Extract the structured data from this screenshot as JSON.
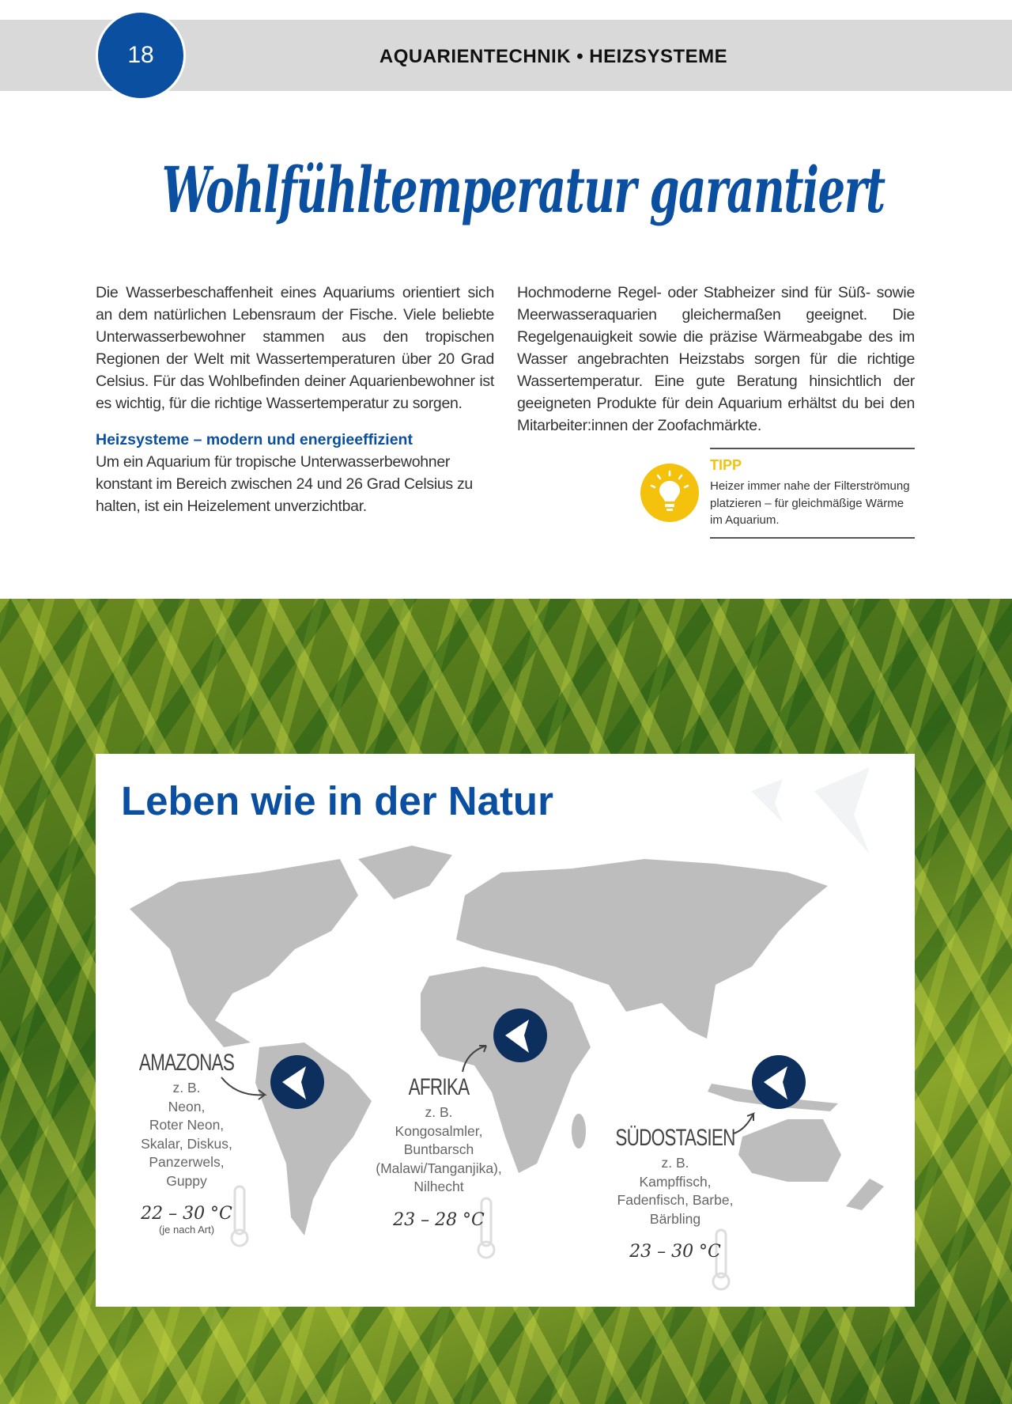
{
  "header": {
    "page_number": "18",
    "section": "AQUARIENTECHNIK • HEIZSYSTEME"
  },
  "title": "Wohlfühltemperatur garantiert",
  "intro_left": "Die Wasserbeschaffenheit eines Aquariums orientiert sich an dem natürlichen Lebensraum der Fische. Viele beliebte Unterwasserbewohner stammen aus den tropischen Regionen der Welt mit Wassertemperaturen über 20 Grad Celsius. Für das Wohlbefinden deiner Aquarienbewohner ist es wichtig, für die richtige Wassertemperatur zu sorgen.",
  "subheading": "Heizsysteme – modern und energieeffizient",
  "sub_text": "Um ein Aquarium für tropische Unterwasserbewohner konstant im Bereich zwischen 24 und 26 Grad Celsius zu halten, ist ein Heizelement unverzichtbar.",
  "intro_right": "Hochmoderne Regel- oder Stabheizer sind für Süß- sowie Meerwasseraquarien gleichermaßen geeignet. Die Regelgenauigkeit sowie die präzise Wärmeabgabe des im Wasser angebrachten Heizstabs sorgen für die richtige Wassertemperatur. Eine gute Beratung hinsichtlich der geeigneten Produkte für dein Aquarium erhältst du bei den Mitarbeiter:innen der Zoofachmärkte.",
  "tip": {
    "icon": "lightbulb-icon",
    "title": "TIPP",
    "text": "Heizer immer nahe der Filterströmung platzieren – für gleichmäßige Wärme im Aquarium."
  },
  "map_card": {
    "title": "Leben wie in der Natur",
    "regions": [
      {
        "name": "AMAZONAS",
        "eg": "z. B.",
        "fish": [
          "Neon,",
          "Roter Neon,",
          "Skalar, Diskus,",
          "Panzerwels,",
          "Guppy"
        ],
        "temp": "22 – 30 °C",
        "note": "(je nach Art)"
      },
      {
        "name": "AFRIKA",
        "eg": "z. B.",
        "fish": [
          "Kongosalmler,",
          "Buntbarsch",
          "(Malawi/Tanganjika),",
          "Nilhecht"
        ],
        "temp": "23 – 28 °C"
      },
      {
        "name": "SÜDOSTASIEN",
        "eg": "z. B.",
        "fish": [
          "Kampffisch,",
          "Fadenfisch, Barbe,",
          "Bärbling"
        ],
        "temp": "23 – 30 °C"
      }
    ]
  },
  "colors": {
    "brand_blue": "#0b4fa0",
    "tip_yellow": "#f4c20d",
    "map_grey": "#bdbdbd",
    "fish_badge": "#0d2f5e"
  }
}
